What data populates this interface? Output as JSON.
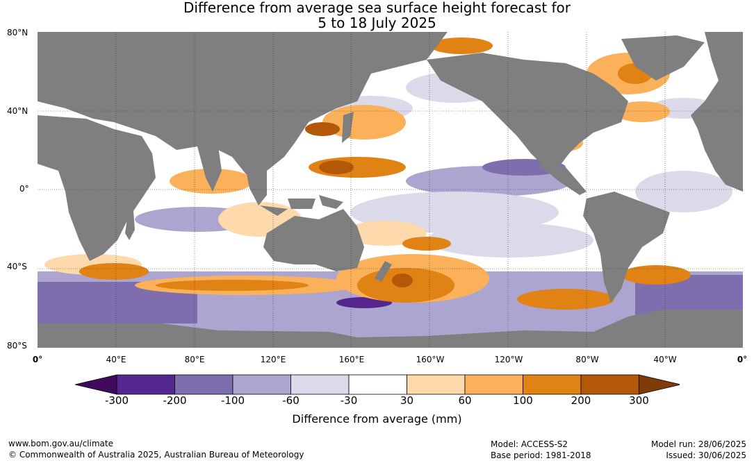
{
  "title": {
    "line1": "Difference from average sea surface height forecast for",
    "line2": "5 to 18 July 2025"
  },
  "map": {
    "lat_labels": [
      "80°N",
      "40°N",
      "0°",
      "40°S",
      "80°S"
    ],
    "lon_labels": [
      "0°",
      "40°E",
      "80°E",
      "120°E",
      "160°E",
      "160°W",
      "120°W",
      "80°W",
      "40°W",
      "0°"
    ],
    "land_color": "#7f7f7f",
    "ocean_base_color": "#ffffff"
  },
  "colorbar": {
    "ticks": [
      "-300",
      "-200",
      "-100",
      "-60",
      "-30",
      "30",
      "60",
      "100",
      "200",
      "300"
    ],
    "colors": [
      "#3f0a5e",
      "#54278f",
      "#7e6ead",
      "#aba5cf",
      "#dadaeb",
      "#ffffff",
      "#fdd9ab",
      "#fbb15a",
      "#e08214",
      "#b35806",
      "#7f3b08"
    ],
    "label": "Difference from average (mm)"
  },
  "footer": {
    "website": "www.bom.gov.au/climate",
    "copyright": "© Commonwealth of Australia 2025, Australian Bureau of Meteorology",
    "model": "Model: ACCESS-S2",
    "base_period": "Base period: 1981-2018",
    "model_run": "Model run: 28/06/2025",
    "issued": "Issued: 30/06/2025"
  }
}
